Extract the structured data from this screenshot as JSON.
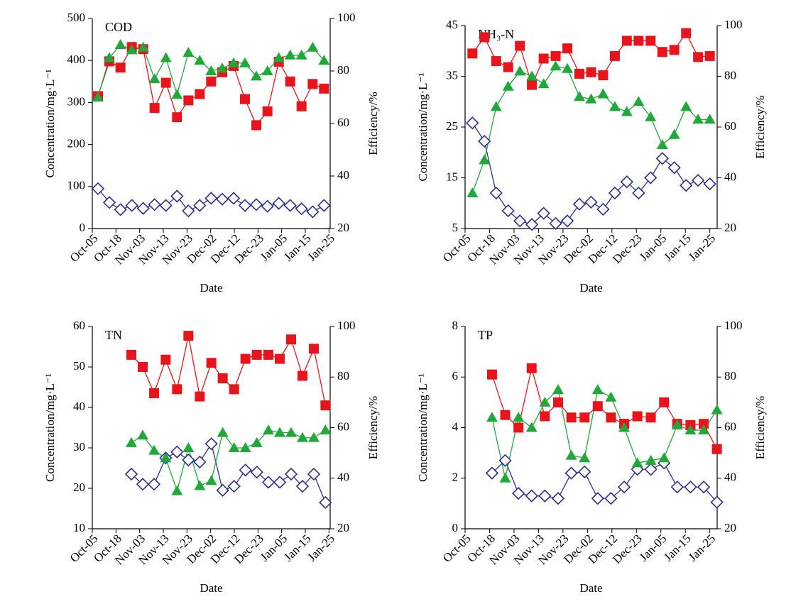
{
  "chart_data": [
    {
      "type": "line",
      "title": "COD",
      "x": [
        0.24,
        0.72,
        1.19,
        1.67,
        2.15,
        2.63,
        3.11,
        3.58,
        4.06,
        4.54,
        5.02,
        5.49,
        5.97,
        6.45,
        6.93,
        7.4,
        7.88,
        8.36,
        8.84,
        9.31,
        9.79
      ],
      "xlim": [
        0,
        10.05
      ],
      "xticks": [
        {
          "value": 0,
          "label": "Oct-05"
        },
        {
          "value": 1,
          "label": "Oct-18"
        },
        {
          "value": 2,
          "label": "Nov-03"
        },
        {
          "value": 3,
          "label": "Nov-13"
        },
        {
          "value": 4,
          "label": "Nov-23"
        },
        {
          "value": 5,
          "label": "Dec-02"
        },
        {
          "value": 6,
          "label": "Dec-12"
        },
        {
          "value": 7,
          "label": "Dec-23"
        },
        {
          "value": 8,
          "label": "Jan-05"
        },
        {
          "value": 9,
          "label": "Jan-15"
        },
        {
          "value": 10,
          "label": "Jan-25"
        }
      ],
      "xlabel": "Date",
      "ylabel": "Concentration/mg·L⁻¹",
      "y2label": "Efficiency/%",
      "ylim": [
        0,
        500
      ],
      "yticks": [
        0,
        100,
        200,
        300,
        400,
        500
      ],
      "y2lim": [
        20,
        100
      ],
      "y2ticks": [
        20,
        40,
        60,
        80,
        100
      ],
      "series": [
        {
          "color": "#e8141c",
          "marker": "square",
          "values": [
            315,
            398,
            383,
            432,
            427,
            287,
            347,
            265,
            305,
            320,
            350,
            372,
            387,
            308,
            246,
            279,
            397,
            350,
            291,
            344,
            333
          ]
        },
        {
          "color": "#2b2f8f",
          "marker": "diamond",
          "values": [
            95,
            62,
            45,
            55,
            48,
            57,
            55,
            77,
            42,
            55,
            72,
            70,
            72,
            55,
            57,
            53,
            60,
            55,
            47,
            40,
            55
          ]
        },
        {
          "color": "#22a83a",
          "marker": "triangle",
          "axis": "y2",
          "values": [
            70,
            85,
            90,
            88,
            89,
            77,
            85,
            71,
            87,
            84,
            80,
            81,
            83,
            83,
            78,
            80,
            85,
            86,
            86,
            89,
            84
          ]
        }
      ]
    },
    {
      "type": "line",
      "title": "NH₃-N",
      "x": [
        0.3,
        0.79,
        1.27,
        1.76,
        2.24,
        2.73,
        3.21,
        3.7,
        4.18,
        4.67,
        5.15,
        5.64,
        6.12,
        6.61,
        7.09,
        7.58,
        8.06,
        8.55,
        9.03,
        9.52,
        10.0
      ],
      "xlim": [
        0,
        10.3
      ],
      "xticks": [
        {
          "value": 0,
          "label": "Oct-05"
        },
        {
          "value": 1,
          "label": "Oct-18"
        },
        {
          "value": 2,
          "label": "Nov-03"
        },
        {
          "value": 3,
          "label": "Nov-13"
        },
        {
          "value": 4,
          "label": "Nov-23"
        },
        {
          "value": 5,
          "label": "Dec-02"
        },
        {
          "value": 6,
          "label": "Dec-12"
        },
        {
          "value": 7,
          "label": "Dec-23"
        },
        {
          "value": 8,
          "label": "Jan-05"
        },
        {
          "value": 9,
          "label": "Jan-15"
        },
        {
          "value": 10,
          "label": "Jan-25"
        }
      ],
      "xlabel": "Date",
      "ylabel": "Concentration/mg·L⁻¹",
      "y2label": "Efficiency/%",
      "ylim": [
        5,
        45
      ],
      "yticks": [
        5,
        15,
        25,
        35,
        45
      ],
      "y2lim": [
        20,
        100
      ],
      "y2ticks": [
        20,
        40,
        60,
        80,
        100
      ],
      "series": [
        {
          "color": "#e8141c",
          "marker": "square",
          "values": [
            39.5,
            42.7,
            38,
            36.8,
            41,
            33.3,
            38.5,
            39,
            40.5,
            35.5,
            35.8,
            35.2,
            39,
            42,
            42,
            42,
            39.8,
            40.2,
            43.5,
            38.8,
            39
          ]
        },
        {
          "color": "#2b2f8f",
          "marker": "diamond",
          "values": [
            25.8,
            22.2,
            12,
            8.5,
            6.5,
            5.8,
            8,
            6,
            6.5,
            9.8,
            10.2,
            8.8,
            12,
            14.2,
            12,
            15,
            18.8,
            17,
            13.5,
            14.5,
            13.8
          ]
        },
        {
          "color": "#22a83a",
          "marker": "triangle",
          "axis": "y2",
          "values": [
            34,
            47,
            68,
            76,
            82,
            80,
            77,
            84,
            83,
            72,
            71,
            73,
            68,
            66,
            70,
            64,
            53,
            57,
            68,
            63,
            63
          ]
        }
      ]
    },
    {
      "type": "line",
      "title": "TN",
      "x": [
        1.65,
        2.13,
        2.61,
        3.1,
        3.58,
        4.06,
        4.54,
        5.03,
        5.51,
        5.99,
        6.47,
        6.95,
        7.44,
        7.92,
        8.4,
        8.88,
        9.36,
        9.85
      ],
      "xlim": [
        0,
        10.05
      ],
      "xticks": [
        {
          "value": 0,
          "label": "Oct-05"
        },
        {
          "value": 1,
          "label": "Oct-18"
        },
        {
          "value": 2,
          "label": "Nov-03"
        },
        {
          "value": 3,
          "label": "Nov-13"
        },
        {
          "value": 4,
          "label": "Nov-23"
        },
        {
          "value": 5,
          "label": "Dec-02"
        },
        {
          "value": 6,
          "label": "Dec-12"
        },
        {
          "value": 7,
          "label": "Dec-23"
        },
        {
          "value": 8,
          "label": "Jan-05"
        },
        {
          "value": 9,
          "label": "Jan-15"
        },
        {
          "value": 10,
          "label": "Jan-25"
        }
      ],
      "xlabel": "Date",
      "ylabel": "Concentration/mg·L⁻¹",
      "y2label": "Efficiency/%",
      "ylim": [
        10,
        60
      ],
      "yticks": [
        10,
        20,
        30,
        40,
        50,
        60
      ],
      "y2lim": [
        20,
        100
      ],
      "y2ticks": [
        20,
        40,
        60,
        80,
        100
      ],
      "series": [
        {
          "color": "#e8141c",
          "marker": "square",
          "values": [
            53,
            50,
            43.5,
            51.8,
            44.5,
            57.7,
            42.7,
            51,
            47.2,
            44.5,
            52,
            53,
            53,
            52,
            56.8,
            47.8,
            54.5,
            40.5
          ]
        },
        {
          "color": "#2b2f8f",
          "marker": "diamond",
          "values": [
            23.5,
            21,
            21,
            27.5,
            29,
            27,
            26.5,
            31,
            19.5,
            20.5,
            24.5,
            24,
            21.5,
            21.5,
            23.5,
            20.5,
            23.5,
            16.5
          ]
        },
        {
          "color": "#22a83a",
          "marker": "triangle",
          "axis": "y2",
          "values": [
            54,
            57,
            51,
            48,
            35,
            52,
            37,
            39,
            58,
            52,
            52,
            54,
            59,
            58,
            58,
            56,
            56,
            59
          ]
        }
      ]
    },
    {
      "type": "line",
      "title": "TP",
      "x": [
        1.1,
        1.64,
        2.18,
        2.72,
        3.26,
        3.8,
        4.34,
        4.88,
        5.42,
        5.96,
        6.5,
        7.04,
        7.59,
        8.13,
        8.67,
        9.21,
        9.75,
        10.29
      ],
      "xlim": [
        0,
        10.3
      ],
      "xticks": [
        {
          "value": 0,
          "label": "Oct-05"
        },
        {
          "value": 1,
          "label": "Oct-18"
        },
        {
          "value": 2,
          "label": "Nov-03"
        },
        {
          "value": 3,
          "label": "Nov-13"
        },
        {
          "value": 4,
          "label": "Nov-23"
        },
        {
          "value": 5,
          "label": "Dec-02"
        },
        {
          "value": 6,
          "label": "Dec-12"
        },
        {
          "value": 7,
          "label": "Dec-23"
        },
        {
          "value": 8,
          "label": "Jan-05"
        },
        {
          "value": 9,
          "label": "Jan-15"
        },
        {
          "value": 10,
          "label": "Jan-25"
        }
      ],
      "xlabel": "Date",
      "ylabel": "Concentration/mg·L⁻¹",
      "y2label": "Efficiency/%",
      "ylim": [
        0,
        8
      ],
      "yticks": [
        0,
        2,
        4,
        6,
        8
      ],
      "y2lim": [
        20,
        100
      ],
      "y2ticks": [
        20,
        40,
        60,
        80,
        100
      ],
      "series": [
        {
          "color": "#e8141c",
          "marker": "square",
          "values": [
            6.1,
            4.5,
            4.0,
            6.35,
            4.45,
            5.0,
            4.4,
            4.4,
            4.85,
            4.4,
            4.15,
            4.45,
            4.4,
            5.0,
            4.15,
            4.1,
            4.15,
            3.15
          ]
        },
        {
          "color": "#2b2f8f",
          "marker": "diamond",
          "values": [
            2.2,
            2.7,
            1.4,
            1.3,
            1.3,
            1.2,
            2.2,
            2.25,
            1.2,
            1.2,
            1.65,
            2.35,
            2.35,
            2.6,
            1.65,
            1.65,
            1.65,
            1.05
          ]
        },
        {
          "color": "#22a83a",
          "marker": "triangle",
          "axis": "y2",
          "values": [
            64,
            40,
            64,
            60,
            70,
            75,
            49,
            48,
            75,
            72,
            60,
            46,
            47,
            48,
            61,
            59,
            59,
            67
          ]
        }
      ]
    }
  ]
}
